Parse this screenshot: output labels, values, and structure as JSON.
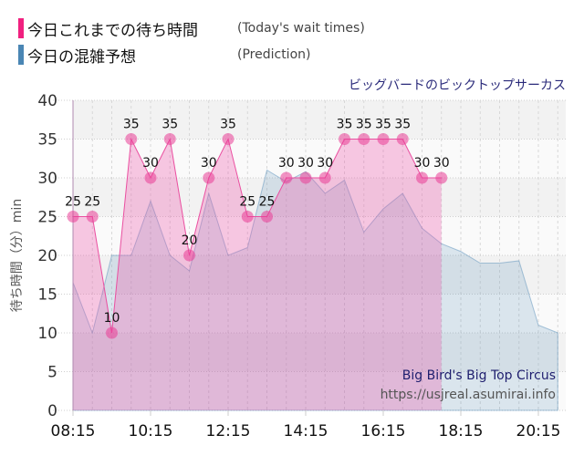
{
  "legend": {
    "today": {
      "label_jp": "今日これまでの待ち時間",
      "label_en": "(Today's wait times)",
      "color": "#e8288e"
    },
    "prediction": {
      "label_jp": "今日の混雑予想",
      "label_en": "(Prediction)",
      "color": "#4a86b4"
    }
  },
  "attraction_jp": "ビッグバードのビックトップサーカス",
  "watermark": {
    "name_en": "Big Bird's Big Top Circus",
    "url": "https://usjreal.asumirai.info"
  },
  "chart_data": {
    "type": "area",
    "title": "ビッグバードのビックトップサーカス",
    "xlabel": "",
    "ylabel": "待ち時間（分）min",
    "ylim": [
      0,
      40
    ],
    "yticks": [
      0,
      5,
      10,
      15,
      20,
      25,
      30,
      35,
      40
    ],
    "xtick_labels": [
      "08:15",
      "10:15",
      "12:15",
      "14:15",
      "16:15",
      "18:15",
      "20:15"
    ],
    "grid": true,
    "legend_position": "top-left",
    "x": [
      "08:15",
      "08:45",
      "09:15",
      "09:45",
      "10:15",
      "10:45",
      "11:15",
      "11:45",
      "12:15",
      "12:45",
      "13:15",
      "13:45",
      "14:15",
      "14:45",
      "15:15",
      "15:45",
      "16:15",
      "16:45",
      "17:15",
      "17:45",
      "18:15",
      "18:45",
      "19:15",
      "19:45",
      "20:15",
      "20:45"
    ],
    "series": [
      {
        "name": "今日これまでの待ち時間 (Today's wait times)",
        "color": "#e8288e",
        "values": [
          25,
          25,
          10,
          35,
          30,
          35,
          20,
          30,
          35,
          25,
          25,
          30,
          30,
          30,
          35,
          35,
          35,
          35,
          30,
          30,
          null,
          null,
          null,
          null,
          null,
          null
        ]
      },
      {
        "name": "今日の混雑予想 (Prediction)",
        "color": "#4a86b4",
        "values": [
          16.5,
          10,
          20,
          20,
          27,
          20,
          18,
          28,
          20,
          21,
          31,
          29.5,
          30.8,
          28,
          29.7,
          23,
          26,
          28,
          23.5,
          21.5,
          20.5,
          19,
          19,
          19.3,
          11,
          10
        ]
      }
    ]
  }
}
